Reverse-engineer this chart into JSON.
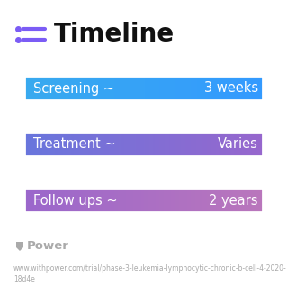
{
  "title": "Timeline",
  "title_icon_color": "#7B5CF5",
  "title_fontsize": 20,
  "background_color": "#ffffff",
  "rows": [
    {
      "label": "Screening ~",
      "value": "3 weeks",
      "color_left": "#38AAEE",
      "color_right": "#3399FF"
    },
    {
      "label": "Treatment ~",
      "value": "Varies",
      "color_left": "#6676DD",
      "color_right": "#9966CC"
    },
    {
      "label": "Follow ups ~",
      "value": "2 years",
      "color_left": "#9966CC",
      "color_right": "#BB77BB"
    }
  ],
  "footer_logo_text": "Power",
  "footer_url": "www.withpower.com/trial/phase-3-leukemia-lymphocytic-chronic-b-cell-4-2020-\n18d4e",
  "footer_color": "#AAAAAA",
  "label_fontsize": 10.5,
  "value_fontsize": 10.5
}
